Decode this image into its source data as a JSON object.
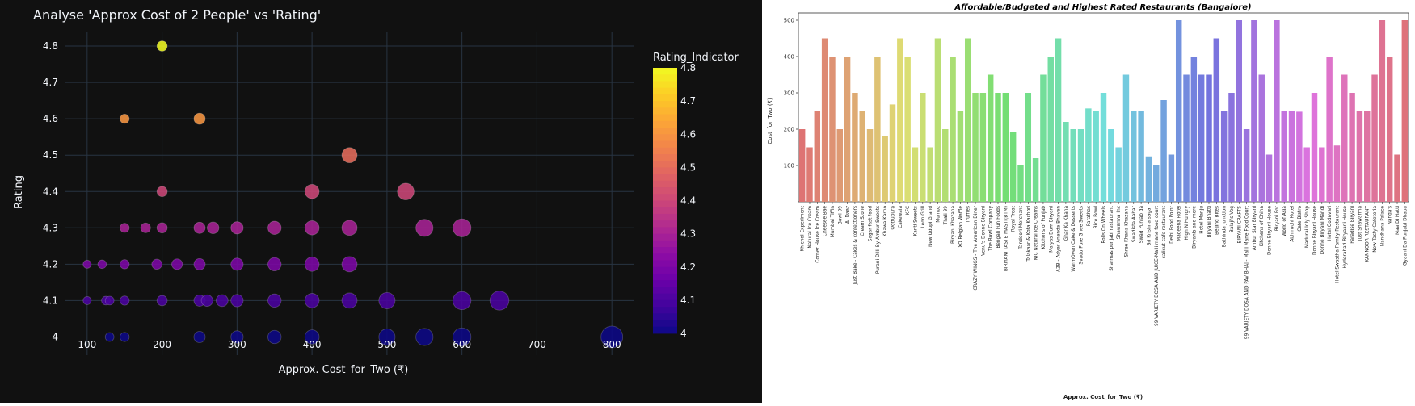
{
  "colors": {
    "left_bg": "#111111",
    "grid": "#283442",
    "plasma": [
      "#0d0887",
      "#41049d",
      "#6a00a8",
      "#8f0da4",
      "#b12a90",
      "#cc4778",
      "#e16462",
      "#f2844b",
      "#fca636",
      "#fcce25",
      "#f0f921"
    ]
  },
  "chart_data": [
    {
      "type": "scatter",
      "title": "Analyse 'Approx Cost of 2 People' vs 'Rating'",
      "xlabel": "Approx. Cost_for_Two (₹)",
      "ylabel": "Rating",
      "xticks": [
        100,
        200,
        300,
        400,
        500,
        600,
        700,
        800
      ],
      "yticks": [
        4,
        4.1,
        4.2,
        4.3,
        4.4,
        4.5,
        4.6,
        4.7,
        4.8
      ],
      "xlim": [
        70,
        830
      ],
      "ylim": [
        3.95,
        4.86
      ],
      "grid": true,
      "colorbar": {
        "title": "Rating_Indicator",
        "range": [
          4,
          4.8
        ],
        "ticks": [
          "4.8",
          "4.7",
          "4.6",
          "4.5",
          "4.4",
          "4.3",
          "4.2",
          "4.1",
          "4"
        ]
      },
      "points": [
        {
          "x": 200,
          "y": 4.8
        },
        {
          "x": 150,
          "y": 4.6
        },
        {
          "x": 250,
          "y": 4.6
        },
        {
          "x": 450,
          "y": 4.5
        },
        {
          "x": 200,
          "y": 4.4
        },
        {
          "x": 400,
          "y": 4.4
        },
        {
          "x": 525,
          "y": 4.4
        },
        {
          "x": 150,
          "y": 4.3
        },
        {
          "x": 178,
          "y": 4.3
        },
        {
          "x": 200,
          "y": 4.3
        },
        {
          "x": 250,
          "y": 4.3
        },
        {
          "x": 268,
          "y": 4.3
        },
        {
          "x": 300,
          "y": 4.3
        },
        {
          "x": 350,
          "y": 4.3
        },
        {
          "x": 400,
          "y": 4.3
        },
        {
          "x": 450,
          "y": 4.3
        },
        {
          "x": 550,
          "y": 4.3
        },
        {
          "x": 600,
          "y": 4.3
        },
        {
          "x": 100,
          "y": 4.2
        },
        {
          "x": 120,
          "y": 4.2
        },
        {
          "x": 150,
          "y": 4.2
        },
        {
          "x": 193,
          "y": 4.2
        },
        {
          "x": 220,
          "y": 4.2
        },
        {
          "x": 250,
          "y": 4.2
        },
        {
          "x": 300,
          "y": 4.2
        },
        {
          "x": 350,
          "y": 4.2
        },
        {
          "x": 400,
          "y": 4.2
        },
        {
          "x": 450,
          "y": 4.2
        },
        {
          "x": 100,
          "y": 4.1
        },
        {
          "x": 125,
          "y": 4.1
        },
        {
          "x": 130,
          "y": 4.1
        },
        {
          "x": 150,
          "y": 4.1
        },
        {
          "x": 200,
          "y": 4.1
        },
        {
          "x": 250,
          "y": 4.1
        },
        {
          "x": 260,
          "y": 4.1
        },
        {
          "x": 280,
          "y": 4.1
        },
        {
          "x": 300,
          "y": 4.1
        },
        {
          "x": 350,
          "y": 4.1
        },
        {
          "x": 400,
          "y": 4.1
        },
        {
          "x": 450,
          "y": 4.1
        },
        {
          "x": 500,
          "y": 4.1
        },
        {
          "x": 600,
          "y": 4.1
        },
        {
          "x": 650,
          "y": 4.1
        },
        {
          "x": 130,
          "y": 4.0
        },
        {
          "x": 150,
          "y": 4.0
        },
        {
          "x": 250,
          "y": 4.0
        },
        {
          "x": 300,
          "y": 4.0
        },
        {
          "x": 350,
          "y": 4.0
        },
        {
          "x": 400,
          "y": 4.0
        },
        {
          "x": 500,
          "y": 4.0
        },
        {
          "x": 550,
          "y": 4.0
        },
        {
          "x": 600,
          "y": 4.0
        },
        {
          "x": 800,
          "y": 4.0
        }
      ]
    },
    {
      "type": "bar",
      "title": "Affordable/Budgeted and Highest Rated Restaurants (Bangalore)",
      "xlabel": "Approx. Cost_for_Two (₹)",
      "ylabel": "Cost_for_Two (₹)",
      "ylim": [
        0,
        520
      ],
      "yticks": [
        100,
        200,
        300,
        400,
        500
      ],
      "categories": [
        "Khichdi Experiment",
        "Natural Ice Cream",
        "Corner House Ice Cream",
        "Cheesee Bae",
        "Mumbai Tiffin",
        "Bowl 99",
        "Al Daaz",
        "Just Bake - Cakes & confectioners",
        "Cream Stone",
        "Sagar fast food",
        "Purani Dilli By Ambur Sweets",
        "Khawa Karpo",
        "Oottupura",
        "Cakewala",
        "KFC",
        "Kanti Sweets",
        "Leon Grill",
        "New Udupi Grand",
        "Momoz",
        "Thali 99",
        "Biryani Khazana",
        "XO Belgian Waffle",
        "Truffles",
        "CRAZY WINGS - The American Diner",
        "Venu's Donne Biryani",
        "The Bowl Company",
        "Bengali Fun Foods",
        "BIRIYANI TASTE MASTI(BTM)",
        "Royal Treat",
        "Tandoori Merchant",
        "Talakaar & Kota Kachori",
        "NIC Natural Ice Creams",
        "Kitchens of Punjab",
        "Maiyas Dum Biryani",
        "A2B - Adyar Ananda Bhavan",
        "Ghar Ka Khana",
        "WarmOven Cake & Desserts",
        "Svadu Pure Ghee Sweets",
        "Parathas",
        "Rice Bowl",
        "Rolls On Wheels",
        "Sharmas punjabi restaurant",
        "Shawarma Inc",
        "Shree Khana Khazana",
        "Swadista Aahar",
        "Swad Punjab da",
        "Sri Krishna sagar",
        "99 VARIETY DOSA AND JUICE-Malli mane food court",
        "calicut cafe restaurant",
        "Delhi Food Point",
        "Madeena Hotel",
        "High N Hungry",
        "Biryanis and more",
        "Hotel Manju",
        "Biryani Bhatti",
        "Beijing Bites",
        "Bathinda Junction",
        "Balaji's Veg",
        "BIRYANI CRAFTS",
        "99 VARIETY DOSA AND PAV BHAJI- Malli Mane Food Court",
        "Ambur Star Biryani",
        "Kitchens of China",
        "Donne Biryani House",
        "Biryani Pot",
        "World of Asia",
        "Abhiruchi Hotel",
        "Cafe Bistro",
        "Madurai Idly Shop",
        "Donne Biryani House",
        "Donne Biryani Mandi",
        "Hotel Godavari",
        "Hotel Swastha Family Restaurant",
        "Hyderabad Biryaani House",
        "Paradise Biryani",
        "Just Shawarma",
        "KANNOOR RESTAURANT",
        "New Tasty Cafeteria",
        "Nandhana Palace",
        "Nanda's",
        "Maa Di Hatti",
        "Gyaani Da Punjabi Dhaba"
      ],
      "values": [
        200,
        150,
        250,
        450,
        400,
        200,
        400,
        300,
        250,
        200,
        400,
        180,
        268,
        450,
        400,
        150,
        300,
        150,
        450,
        200,
        400,
        250,
        450,
        300,
        300,
        350,
        300,
        300,
        193,
        100,
        300,
        120,
        350,
        400,
        450,
        220,
        200,
        200,
        257,
        250,
        300,
        200,
        150,
        350,
        250,
        250,
        125,
        100,
        280,
        130,
        500,
        350,
        400,
        350,
        350,
        450,
        250,
        300,
        500,
        200,
        500,
        350,
        130,
        500,
        250,
        250,
        248,
        150,
        300,
        150,
        400,
        155,
        350,
        300,
        250,
        250,
        350,
        500,
        400,
        130,
        500
      ]
    }
  ]
}
